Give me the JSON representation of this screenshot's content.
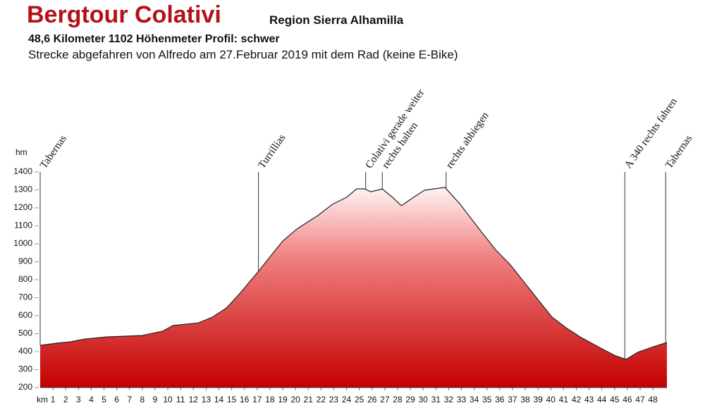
{
  "chart_data": {
    "type": "area",
    "title": "Bergtour Colativi",
    "subtitle": "Region Sierra Alhamilla",
    "info": "48,6 Kilometer  1102 Höhenmeter  Profil: schwer",
    "description": "Strecke abgefahren von Alfredo am 27.Februar 2019 mit dem Rad (keine E-Bike)",
    "y_label": "hm",
    "x_label": "km",
    "x": [
      0,
      1.3,
      2.4,
      3.5,
      5.2,
      8,
      9.6,
      10.4,
      12.4,
      13.5,
      14.6,
      15.7,
      17.1,
      18.2,
      19,
      20.1,
      21.8,
      22.9,
      24,
      24.8,
      25.4,
      25.9,
      26.4,
      26.8,
      27.6,
      28.3,
      29,
      30.1,
      31.7,
      32.9,
      34.6,
      35.7,
      36.8,
      37.9,
      39,
      40.1,
      41.2,
      42.3,
      44,
      45.1,
      45.9,
      46.8,
      47.9,
      49.1
    ],
    "values": [
      435,
      447,
      455,
      470,
      482,
      490,
      514,
      545,
      560,
      592,
      643,
      729,
      847,
      945,
      1015,
      1082,
      1160,
      1220,
      1259,
      1306,
      1306,
      1290,
      1298,
      1306,
      1259,
      1212,
      1247,
      1298,
      1314,
      1220,
      1063,
      965,
      886,
      788,
      690,
      592,
      533,
      482,
      416,
      376,
      357,
      396,
      424,
      451
    ],
    "color": "#c40000",
    "xlim": [
      0,
      49.1
    ],
    "ylim": [
      200,
      1400
    ],
    "yticks": [
      200,
      300,
      400,
      500,
      600,
      700,
      800,
      900,
      1000,
      1100,
      1200,
      1300,
      1400
    ],
    "xticks": [
      1,
      2,
      3,
      4,
      5,
      6,
      7,
      8,
      9,
      10,
      11,
      12,
      13,
      14,
      15,
      16,
      17,
      18,
      19,
      20,
      21,
      22,
      23,
      24,
      25,
      26,
      27,
      28,
      29,
      30,
      31,
      32,
      33,
      34,
      35,
      36,
      37,
      38,
      39,
      40,
      41,
      42,
      43,
      44,
      45,
      46,
      47,
      48
    ],
    "annotations": [
      {
        "x": 0,
        "label": "Tabernas"
      },
      {
        "x": 17.1,
        "label": "Turrillias"
      },
      {
        "x": 25.5,
        "label": "Colativi gerade weiter"
      },
      {
        "x": 26.8,
        "label": "rechts halten"
      },
      {
        "x": 31.8,
        "label": "rechts abbiegen"
      },
      {
        "x": 45.8,
        "label": "A 340 rechts fahren"
      },
      {
        "x": 49,
        "label": "Tabernas"
      }
    ]
  }
}
